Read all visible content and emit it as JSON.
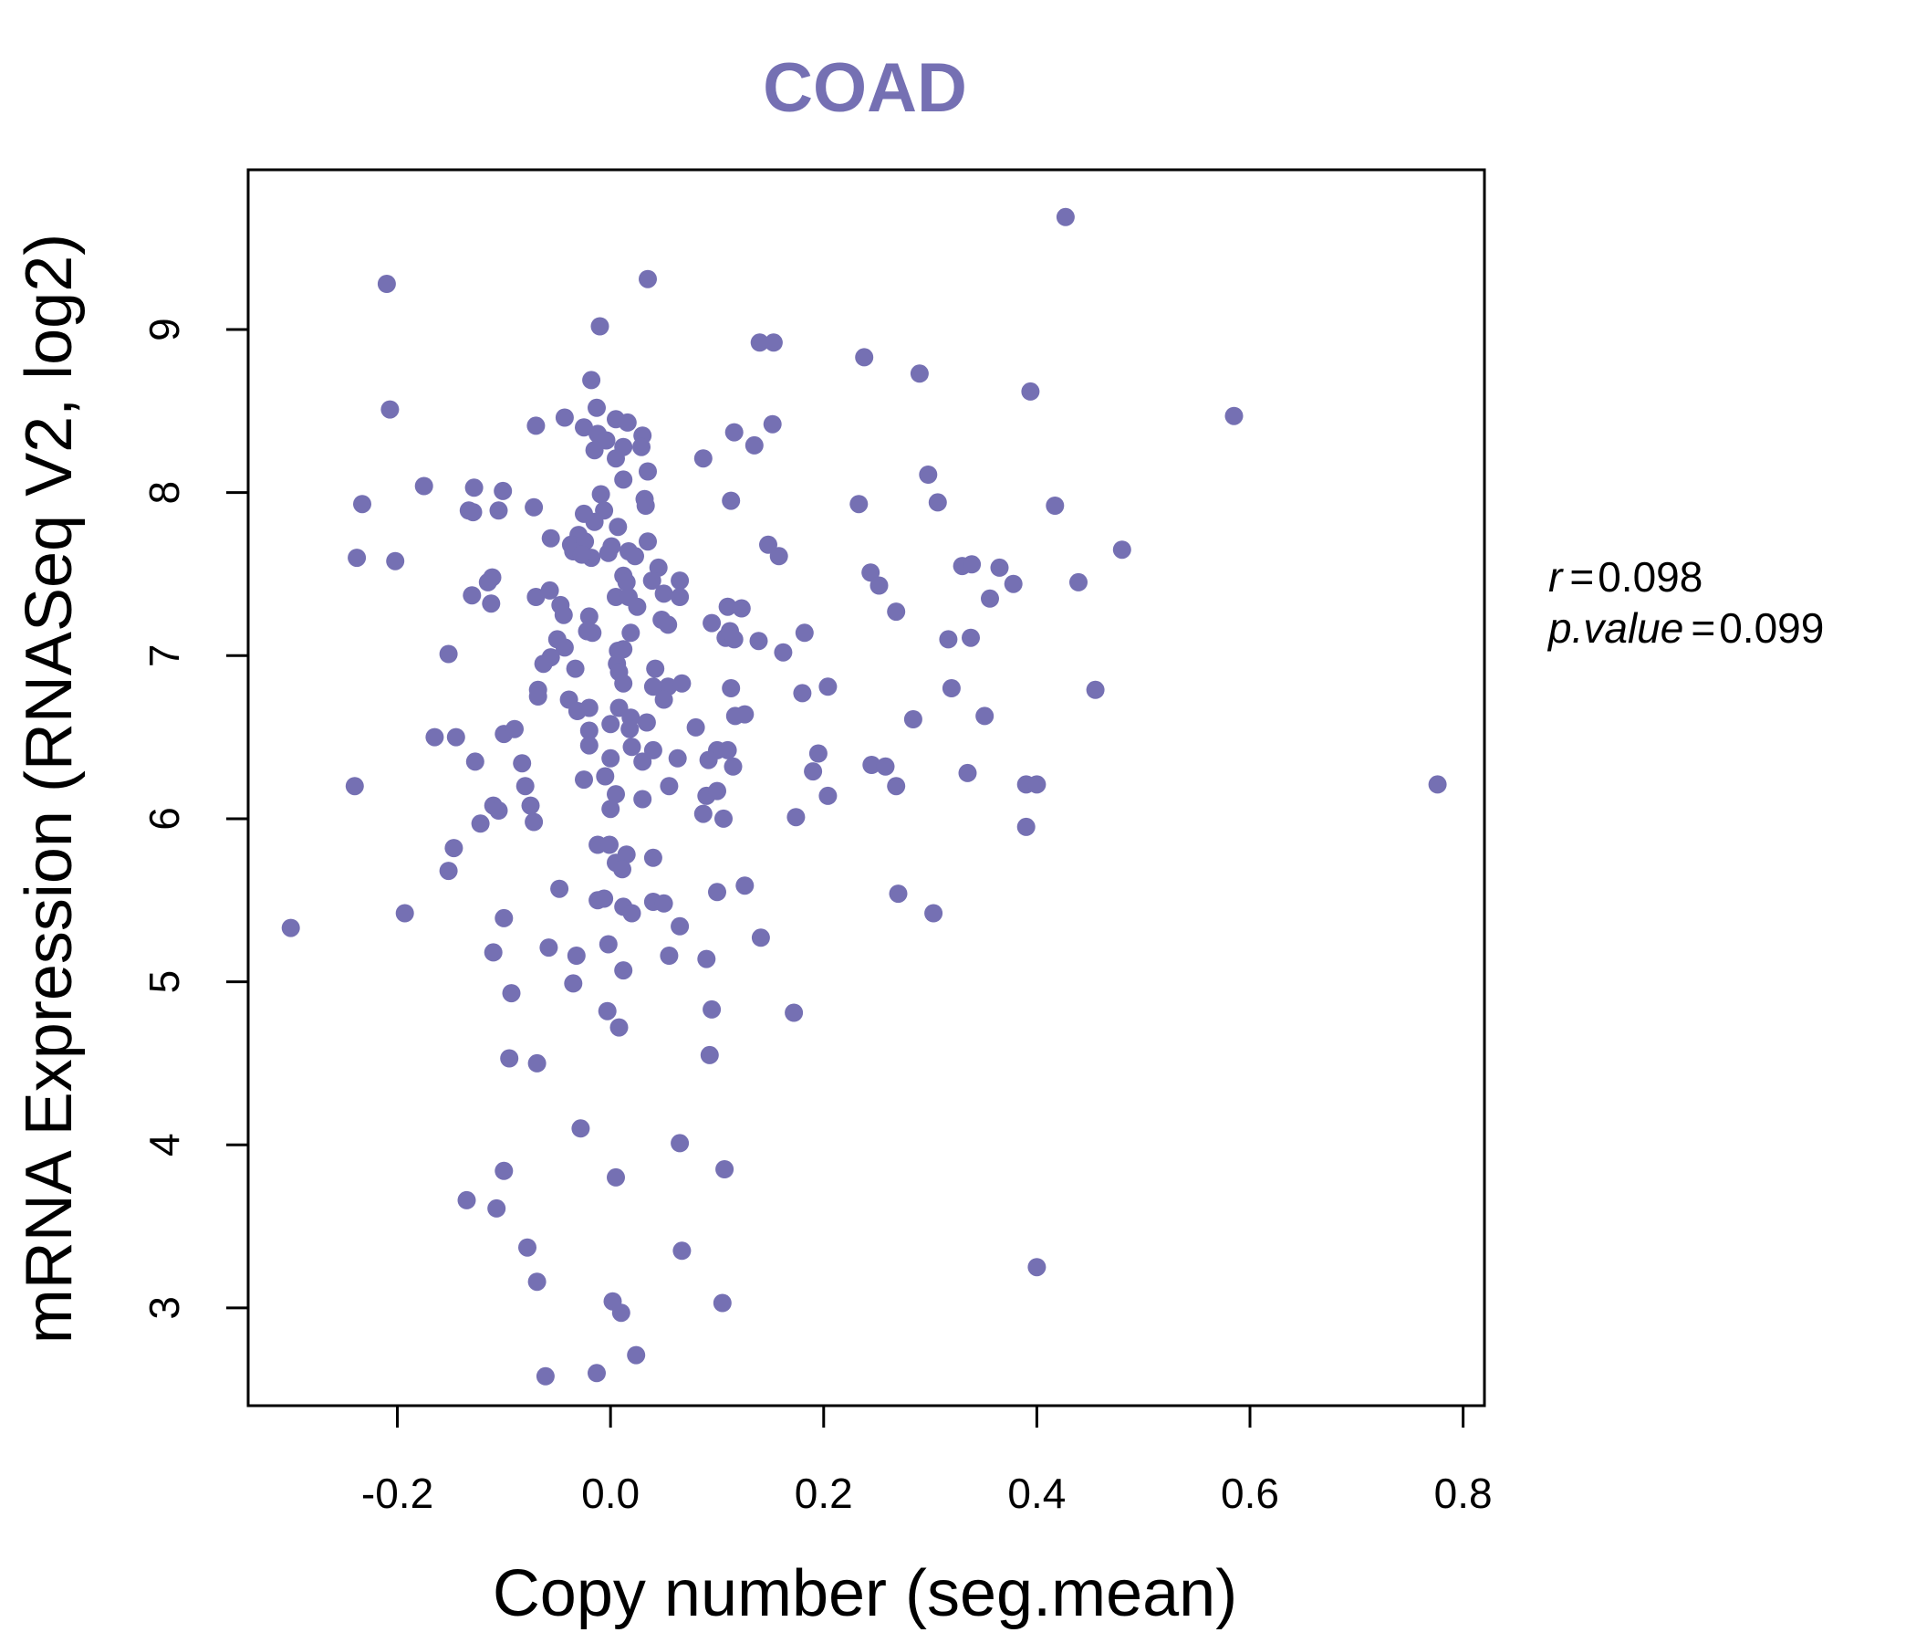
{
  "chart_data": {
    "type": "scatter",
    "title": "COAD",
    "xlabel": "Copy number (seg.mean)",
    "ylabel": "mRNA Expression (RNASeq V2, log2)",
    "xlim": [
      -0.34,
      0.82
    ],
    "ylim": [
      2.4,
      9.98
    ],
    "x_ticks": [
      -0.2,
      0.0,
      0.2,
      0.4,
      0.6,
      0.8
    ],
    "x_tick_labels": [
      "-0.2",
      "0.0",
      "0.2",
      "0.4",
      "0.6",
      "0.8"
    ],
    "y_ticks": [
      3,
      4,
      5,
      6,
      7,
      8,
      9
    ],
    "y_tick_labels": [
      "3",
      "4",
      "5",
      "6",
      "7",
      "8",
      "9"
    ],
    "grid": false,
    "point_color": "#7570b3",
    "stats": {
      "r_label": "r",
      "r_value": "0.098",
      "p_label": "p.value",
      "p_value": "0.099"
    },
    "points": [
      [
        -0.21,
        9.28
      ],
      [
        0.035,
        9.31
      ],
      [
        -0.01,
        9.02
      ],
      [
        0.427,
        9.69
      ],
      [
        -0.207,
        8.51
      ],
      [
        0.14,
        8.92
      ],
      [
        0.153,
        8.92
      ],
      [
        0.238,
        8.83
      ],
      [
        0.29,
        8.73
      ],
      [
        0.394,
        8.62
      ],
      [
        0.585,
        8.47
      ],
      [
        -0.018,
        8.69
      ],
      [
        -0.013,
        8.52
      ],
      [
        -0.043,
        8.46
      ],
      [
        -0.025,
        8.4
      ],
      [
        -0.07,
        8.41
      ],
      [
        0.005,
        8.45
      ],
      [
        0.016,
        8.43
      ],
      [
        -0.012,
        8.36
      ],
      [
        -0.004,
        8.32
      ],
      [
        0.012,
        8.28
      ],
      [
        0.03,
        8.35
      ],
      [
        0.029,
        8.28
      ],
      [
        -0.015,
        8.26
      ],
      [
        0.005,
        8.21
      ],
      [
        0.087,
        8.21
      ],
      [
        0.116,
        8.37
      ],
      [
        0.135,
        8.29
      ],
      [
        0.152,
        8.42
      ],
      [
        0.012,
        8.08
      ],
      [
        0.035,
        8.13
      ],
      [
        0.298,
        8.11
      ],
      [
        -0.175,
        8.04
      ],
      [
        -0.128,
        8.03
      ],
      [
        -0.101,
        8.01
      ],
      [
        -0.233,
        7.93
      ],
      [
        -0.133,
        7.89
      ],
      [
        -0.105,
        7.89
      ],
      [
        -0.072,
        7.91
      ],
      [
        -0.129,
        7.88
      ],
      [
        -0.009,
        7.99
      ],
      [
        -0.006,
        7.89
      ],
      [
        0.032,
        7.96
      ],
      [
        0.033,
        7.92
      ],
      [
        0.113,
        7.95
      ],
      [
        0.233,
        7.93
      ],
      [
        0.307,
        7.94
      ],
      [
        0.417,
        7.92
      ],
      [
        -0.025,
        7.87
      ],
      [
        -0.015,
        7.82
      ],
      [
        0.007,
        7.79
      ],
      [
        -0.056,
        7.72
      ],
      [
        -0.03,
        7.74
      ],
      [
        -0.037,
        7.68
      ],
      [
        -0.024,
        7.7
      ],
      [
        -0.035,
        7.64
      ],
      [
        -0.018,
        7.6
      ],
      [
        -0.027,
        7.62
      ],
      [
        0.001,
        7.67
      ],
      [
        -0.002,
        7.63
      ],
      [
        0.017,
        7.64
      ],
      [
        0.023,
        7.61
      ],
      [
        0.035,
        7.7
      ],
      [
        0.148,
        7.68
      ],
      [
        0.158,
        7.61
      ],
      [
        0.48,
        7.65
      ],
      [
        -0.238,
        7.6
      ],
      [
        -0.202,
        7.58
      ],
      [
        0.045,
        7.54
      ],
      [
        0.012,
        7.49
      ],
      [
        0.015,
        7.45
      ],
      [
        0.039,
        7.46
      ],
      [
        0.065,
        7.46
      ],
      [
        0.244,
        7.51
      ],
      [
        0.252,
        7.43
      ],
      [
        0.33,
        7.55
      ],
      [
        0.339,
        7.56
      ],
      [
        0.365,
        7.54
      ],
      [
        0.378,
        7.44
      ],
      [
        0.439,
        7.45
      ],
      [
        -0.115,
        7.45
      ],
      [
        -0.111,
        7.48
      ],
      [
        -0.13,
        7.37
      ],
      [
        -0.112,
        7.32
      ],
      [
        -0.07,
        7.36
      ],
      [
        -0.057,
        7.4
      ],
      [
        -0.047,
        7.31
      ],
      [
        -0.044,
        7.25
      ],
      [
        -0.02,
        7.24
      ],
      [
        0.005,
        7.36
      ],
      [
        0.017,
        7.36
      ],
      [
        0.025,
        7.3
      ],
      [
        0.05,
        7.38
      ],
      [
        0.065,
        7.36
      ],
      [
        0.048,
        7.22
      ],
      [
        0.054,
        7.19
      ],
      [
        0.11,
        7.3
      ],
      [
        0.123,
        7.29
      ],
      [
        0.095,
        7.2
      ],
      [
        0.108,
        7.11
      ],
      [
        0.112,
        7.15
      ],
      [
        0.116,
        7.1
      ],
      [
        0.139,
        7.09
      ],
      [
        0.182,
        7.14
      ],
      [
        0.162,
        7.02
      ],
      [
        0.317,
        7.1
      ],
      [
        0.338,
        7.11
      ],
      [
        0.356,
        7.35
      ],
      [
        0.268,
        7.27
      ],
      [
        -0.152,
        7.01
      ],
      [
        -0.05,
        7.1
      ],
      [
        -0.043,
        7.05
      ],
      [
        -0.056,
        6.99
      ],
      [
        -0.063,
        6.95
      ],
      [
        -0.033,
        6.92
      ],
      [
        -0.017,
        7.14
      ],
      [
        -0.022,
        7.15
      ],
      [
        0.007,
        7.03
      ],
      [
        0.012,
        7.04
      ],
      [
        0.006,
        6.95
      ],
      [
        0.008,
        6.9
      ],
      [
        0.019,
        7.14
      ],
      [
        0.042,
        6.92
      ],
      [
        0.054,
        6.81
      ],
      [
        0.067,
        6.83
      ],
      [
        -0.068,
        6.79
      ],
      [
        -0.068,
        6.75
      ],
      [
        -0.039,
        6.73
      ],
      [
        -0.031,
        6.66
      ],
      [
        -0.02,
        6.68
      ],
      [
        0.008,
        6.68
      ],
      [
        0.012,
        6.83
      ],
      [
        0.019,
        6.62
      ],
      [
        0.04,
        6.81
      ],
      [
        0.05,
        6.73
      ],
      [
        0.113,
        6.8
      ],
      [
        0.18,
        6.77
      ],
      [
        0.204,
        6.81
      ],
      [
        0.32,
        6.8
      ],
      [
        0.455,
        6.79
      ],
      [
        -0.165,
        6.5
      ],
      [
        -0.145,
        6.5
      ],
      [
        -0.1,
        6.52
      ],
      [
        -0.09,
        6.55
      ],
      [
        -0.02,
        6.54
      ],
      [
        -0.02,
        6.45
      ],
      [
        0.0,
        6.58
      ],
      [
        0.018,
        6.55
      ],
      [
        0.034,
        6.59
      ],
      [
        0.08,
        6.56
      ],
      [
        0.117,
        6.63
      ],
      [
        0.126,
        6.64
      ],
      [
        0.284,
        6.61
      ],
      [
        0.351,
        6.63
      ],
      [
        -0.24,
        6.2
      ],
      [
        -0.127,
        6.35
      ],
      [
        -0.083,
        6.34
      ],
      [
        -0.08,
        6.2
      ],
      [
        -0.025,
        6.24
      ],
      [
        0.0,
        6.37
      ],
      [
        0.02,
        6.44
      ],
      [
        0.03,
        6.35
      ],
      [
        0.04,
        6.42
      ],
      [
        0.063,
        6.37
      ],
      [
        0.1,
        6.42
      ],
      [
        0.11,
        6.42
      ],
      [
        0.115,
        6.32
      ],
      [
        0.092,
        6.36
      ],
      [
        0.195,
        6.4
      ],
      [
        0.19,
        6.29
      ],
      [
        0.245,
        6.33
      ],
      [
        0.258,
        6.32
      ],
      [
        0.268,
        6.2
      ],
      [
        0.335,
        6.28
      ],
      [
        0.39,
        6.21
      ],
      [
        0.4,
        6.21
      ],
      [
        0.776,
        6.21
      ],
      [
        -0.11,
        6.08
      ],
      [
        -0.105,
        6.05
      ],
      [
        -0.075,
        6.08
      ],
      [
        -0.072,
        5.98
      ],
      [
        -0.122,
        5.97
      ],
      [
        -0.005,
        6.26
      ],
      [
        0.005,
        6.15
      ],
      [
        0.0,
        6.06
      ],
      [
        0.03,
        6.12
      ],
      [
        0.055,
        6.2
      ],
      [
        0.09,
        6.14
      ],
      [
        0.1,
        6.17
      ],
      [
        0.087,
        6.03
      ],
      [
        0.106,
        6.0
      ],
      [
        0.174,
        6.01
      ],
      [
        0.204,
        6.14
      ],
      [
        0.39,
        5.95
      ],
      [
        -0.147,
        5.82
      ],
      [
        -0.152,
        5.68
      ],
      [
        -0.193,
        5.42
      ],
      [
        -0.012,
        5.84
      ],
      [
        -0.001,
        5.84
      ],
      [
        0.015,
        5.78
      ],
      [
        0.04,
        5.76
      ],
      [
        0.005,
        5.73
      ],
      [
        0.011,
        5.69
      ],
      [
        -0.048,
        5.57
      ],
      [
        -0.012,
        5.5
      ],
      [
        -0.006,
        5.51
      ],
      [
        0.012,
        5.46
      ],
      [
        0.02,
        5.42
      ],
      [
        0.04,
        5.49
      ],
      [
        0.05,
        5.48
      ],
      [
        0.065,
        5.34
      ],
      [
        0.1,
        5.55
      ],
      [
        0.126,
        5.59
      ],
      [
        0.27,
        5.54
      ],
      [
        0.303,
        5.42
      ],
      [
        -0.3,
        5.33
      ],
      [
        -0.1,
        5.39
      ],
      [
        -0.11,
        5.18
      ],
      [
        -0.058,
        5.21
      ],
      [
        -0.032,
        5.16
      ],
      [
        -0.002,
        5.23
      ],
      [
        0.055,
        5.16
      ],
      [
        0.09,
        5.14
      ],
      [
        0.141,
        5.27
      ],
      [
        -0.093,
        4.93
      ],
      [
        -0.035,
        4.99
      ],
      [
        0.012,
        5.07
      ],
      [
        -0.003,
        4.82
      ],
      [
        0.008,
        4.72
      ],
      [
        0.095,
        4.83
      ],
      [
        0.172,
        4.81
      ],
      [
        -0.095,
        4.53
      ],
      [
        -0.069,
        4.5
      ],
      [
        0.093,
        4.55
      ],
      [
        -0.028,
        4.1
      ],
      [
        0.065,
        4.01
      ],
      [
        -0.1,
        3.84
      ],
      [
        0.005,
        3.8
      ],
      [
        0.107,
        3.85
      ],
      [
        -0.135,
        3.66
      ],
      [
        -0.107,
        3.61
      ],
      [
        -0.078,
        3.37
      ],
      [
        0.067,
        3.35
      ],
      [
        0.4,
        3.25
      ],
      [
        -0.069,
        3.16
      ],
      [
        0.002,
        3.04
      ],
      [
        0.01,
        2.97
      ],
      [
        0.105,
        3.03
      ],
      [
        -0.061,
        2.58
      ],
      [
        -0.013,
        2.6
      ],
      [
        0.024,
        2.71
      ]
    ]
  }
}
